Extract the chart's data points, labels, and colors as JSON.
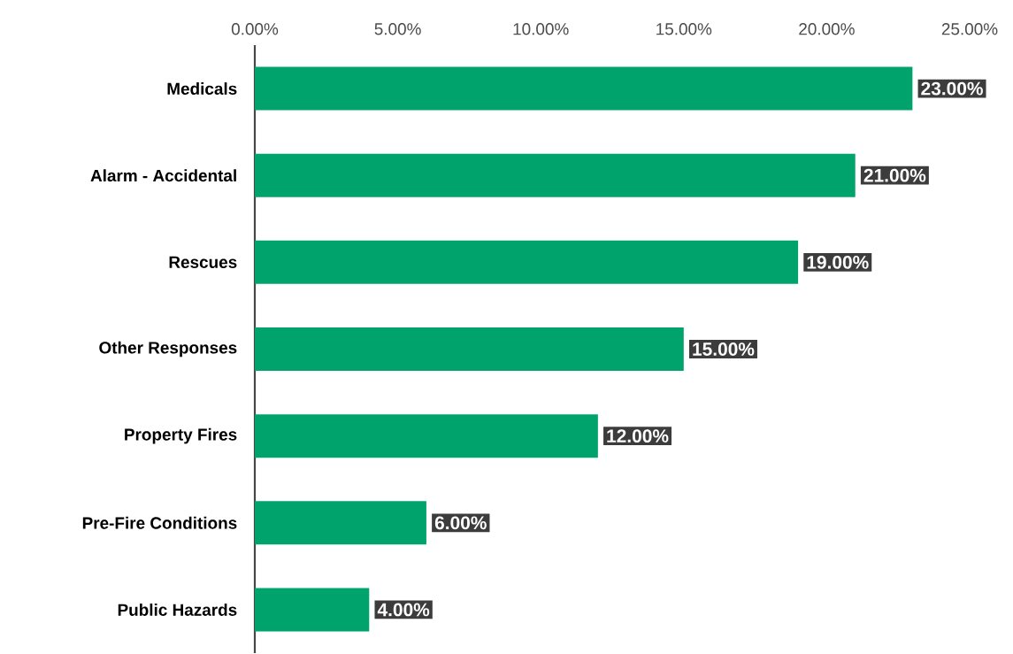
{
  "chart_data": {
    "type": "bar",
    "orientation": "horizontal",
    "color": "#00a36c",
    "categories": [
      "Medicals",
      "Alarm - Accidental",
      "Rescues",
      "Other Responses",
      "Property Fires",
      "Pre-Fire Conditions",
      "Public Hazards"
    ],
    "values": [
      23,
      21,
      19,
      15,
      12,
      6,
      4
    ],
    "value_labels": [
      "23.00%",
      "21.00%",
      "19.00%",
      "15.00%",
      "12.00%",
      "6.00%",
      "4.00%"
    ],
    "xlim": [
      0,
      25
    ],
    "xticks": [
      {
        "value": 0,
        "label": "0.00%"
      },
      {
        "value": 5,
        "label": "5.00%"
      },
      {
        "value": 10,
        "label": "10.00%"
      },
      {
        "value": 15,
        "label": "15.00%"
      },
      {
        "value": 20,
        "label": "20.00%"
      },
      {
        "value": 25,
        "label": "25.00%"
      }
    ]
  }
}
